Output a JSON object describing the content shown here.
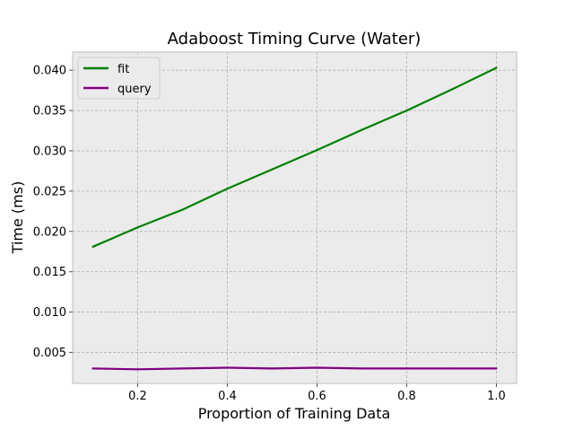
{
  "chart_data": {
    "type": "line",
    "title": "Adaboost Timing Curve (Water)",
    "xlabel": "Proportion of Training Data",
    "ylabel": "Time (ms)",
    "xlim": [
      0.055,
      1.045
    ],
    "ylim": [
      0.00115,
      0.04225
    ],
    "xticks": [
      0.2,
      0.4,
      0.6,
      0.8,
      1.0
    ],
    "xtick_labels": [
      "0.2",
      "0.4",
      "0.6",
      "0.8",
      "1.0"
    ],
    "yticks": [
      0.005,
      0.01,
      0.015,
      0.02,
      0.025,
      0.03,
      0.035,
      0.04
    ],
    "ytick_labels": [
      "0.005",
      "0.010",
      "0.015",
      "0.020",
      "0.025",
      "0.030",
      "0.035",
      "0.040"
    ],
    "grid": true,
    "legend_position": "top-left",
    "x": [
      0.1,
      0.2,
      0.3,
      0.4,
      0.5,
      0.6,
      0.7,
      0.8,
      0.9,
      1.0
    ],
    "series": [
      {
        "name": "fit",
        "color": "#008000",
        "values": [
          0.0181,
          0.0205,
          0.0227,
          0.0253,
          0.0277,
          0.0301,
          0.0326,
          0.035,
          0.0376,
          0.0403
        ]
      },
      {
        "name": "query",
        "color": "#800080",
        "values": [
          0.003,
          0.0029,
          0.003,
          0.0031,
          0.003,
          0.0031,
          0.003,
          0.003,
          0.003,
          0.003
        ]
      }
    ],
    "colors": {
      "plot_background": "#ebebeb",
      "grid": "#b0b0b0",
      "spine": "#bcbcbc"
    }
  }
}
